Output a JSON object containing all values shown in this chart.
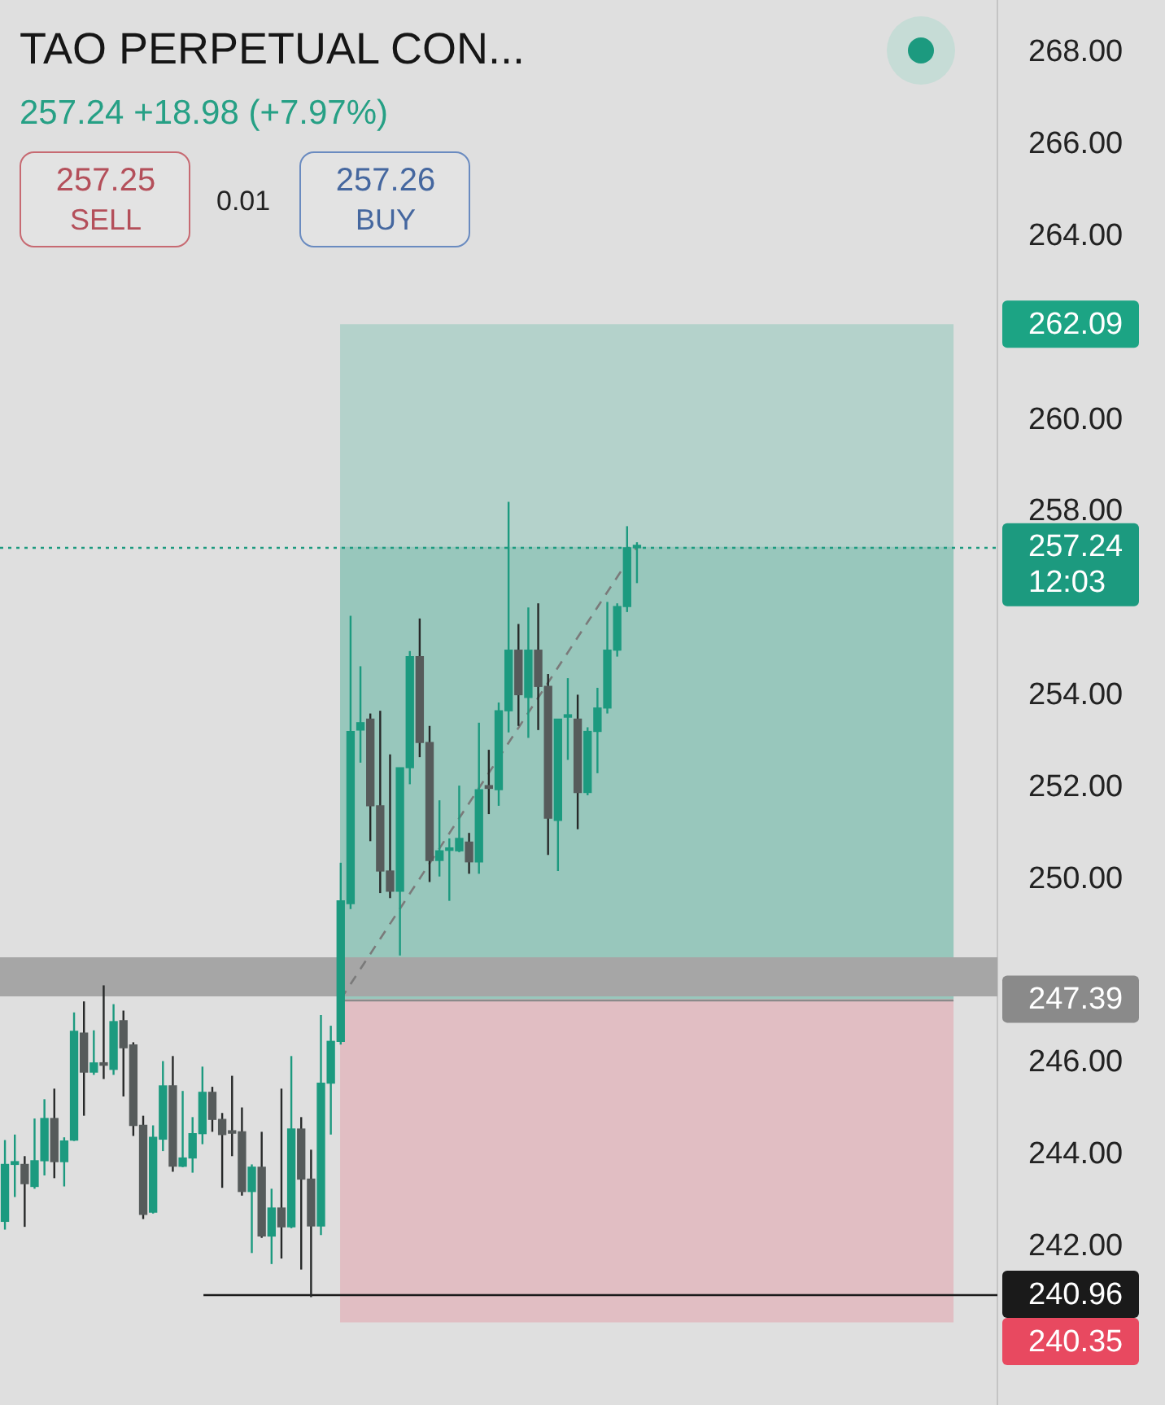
{
  "chart_data": {
    "type": "candlestick",
    "title": "TAO PERPETUAL CON...",
    "subtitle": "257.24 +18.98 (+7.97%)",
    "annotations": [
      "257.25",
      "SELL",
      "0.01",
      "257.26",
      "BUY"
    ],
    "categories": [
      null,
      null,
      null,
      null,
      null,
      null,
      null,
      null,
      null,
      null,
      null,
      null,
      null,
      null,
      null,
      null,
      null,
      null,
      null,
      null,
      null,
      null,
      null,
      null,
      null,
      null,
      null,
      null,
      null,
      null,
      null,
      null,
      null,
      null,
      null,
      null,
      null,
      null,
      null,
      null,
      null,
      null,
      null,
      null,
      null,
      null,
      null,
      null,
      null,
      null,
      null,
      null,
      null,
      null,
      null,
      null,
      null,
      null,
      null,
      null,
      null,
      null,
      null,
      null,
      null,
      null,
      null,
      null,
      null,
      null,
      null,
      null,
      null,
      null,
      null,
      null,
      null,
      null,
      null,
      null,
      null,
      null,
      null,
      null,
      null,
      null,
      null,
      null,
      null,
      null,
      null,
      null,
      null,
      null,
      null,
      null,
      null,
      null,
      null,
      null,
      null
    ],
    "ohlc": [
      [
        242.55,
        244.32,
        242.37,
        243.79
      ],
      [
        243.79,
        244.44,
        243.08,
        243.85
      ],
      [
        243.79,
        243.97,
        242.43,
        243.37
      ],
      [
        243.31,
        244.79,
        243.26,
        243.87
      ],
      [
        243.87,
        245.21,
        243.55,
        244.79
      ],
      [
        244.79,
        245.44,
        243.49,
        243.85
      ],
      [
        243.85,
        244.38,
        243.31,
        244.3
      ],
      [
        244.32,
        247.1,
        244.3,
        246.69
      ],
      [
        246.65,
        247.34,
        244.85,
        245.8
      ],
      [
        245.8,
        246.71,
        245.74,
        246.0
      ],
      [
        246.0,
        247.69,
        245.65,
        245.95
      ],
      [
        245.86,
        247.28,
        245.74,
        246.9
      ],
      [
        246.92,
        247.14,
        245.27,
        246.33
      ],
      [
        246.39,
        246.45,
        244.41,
        244.64
      ],
      [
        244.64,
        244.85,
        242.6,
        242.7
      ],
      [
        242.75,
        244.64,
        242.72,
        244.38
      ],
      [
        244.34,
        246.04,
        244.08,
        245.5
      ],
      [
        245.5,
        246.15,
        243.63,
        243.75
      ],
      [
        243.75,
        245.39,
        243.73,
        243.93
      ],
      [
        243.93,
        244.82,
        243.61,
        244.46
      ],
      [
        244.46,
        245.92,
        244.23,
        245.36
      ],
      [
        245.36,
        245.48,
        244.5,
        244.77
      ],
      [
        244.77,
        244.91,
        243.28,
        244.44
      ],
      [
        244.52,
        245.72,
        243.97,
        244.47
      ],
      [
        244.5,
        245.03,
        243.11,
        243.2
      ],
      [
        243.2,
        243.79,
        241.86,
        243.73
      ],
      [
        243.73,
        244.5,
        242.19,
        242.23
      ],
      [
        242.23,
        243.26,
        241.62,
        242.84
      ],
      [
        242.84,
        245.44,
        241.74,
        242.43
      ],
      [
        242.43,
        246.15,
        242.4,
        244.56
      ],
      [
        244.56,
        244.82,
        241.5,
        243.47
      ],
      [
        243.47,
        244.11,
        240.9,
        242.45
      ],
      [
        242.45,
        247.04,
        242.25,
        245.56
      ],
      [
        245.56,
        246.81,
        244.44,
        246.47
      ],
      [
        246.47,
        250.36,
        246.4,
        249.53
      ],
      [
        249.47,
        255.74,
        249.35,
        253.22
      ],
      [
        253.25,
        254.64,
        252.54,
        253.41
      ],
      [
        253.49,
        253.61,
        250.83,
        251.6
      ],
      [
        251.6,
        253.67,
        249.7,
        250.18
      ],
      [
        250.18,
        252.72,
        249.59,
        249.74
      ],
      [
        249.74,
        252.43,
        248.34,
        252.43
      ],
      [
        252.43,
        254.97,
        252.07,
        254.85
      ],
      [
        254.85,
        255.68,
        252.66,
        252.98
      ],
      [
        252.98,
        253.34,
        249.94,
        250.41
      ],
      [
        250.41,
        251.72,
        250.06,
        250.62
      ],
      [
        250.63,
        250.89,
        249.53,
        250.67
      ],
      [
        250.62,
        252.04,
        250.59,
        250.89
      ],
      [
        250.81,
        251.01,
        250.12,
        250.38
      ],
      [
        250.38,
        253.41,
        250.12,
        251.95
      ],
      [
        252.04,
        252.82,
        251.42,
        251.98
      ],
      [
        251.95,
        253.85,
        251.6,
        253.67
      ],
      [
        253.67,
        258.22,
        253.2,
        254.99
      ],
      [
        254.99,
        255.56,
        253.34,
        254.02
      ],
      [
        253.96,
        255.92,
        253.08,
        254.99
      ],
      [
        254.99,
        256.01,
        253.25,
        254.2
      ],
      [
        254.2,
        254.47,
        250.53,
        251.33
      ],
      [
        251.28,
        253.49,
        250.18,
        253.49
      ],
      [
        253.53,
        254.38,
        252.6,
        253.57
      ],
      [
        253.49,
        254.02,
        251.09,
        251.89
      ],
      [
        251.89,
        253.31,
        251.83,
        253.22
      ],
      [
        253.22,
        254.17,
        252.31,
        253.73
      ],
      [
        253.73,
        256.04,
        253.61,
        254.99
      ],
      [
        254.99,
        256.01,
        254.85,
        255.94
      ],
      [
        255.94,
        257.69,
        255.82,
        257.22
      ],
      [
        257.22,
        257.34,
        256.45,
        257.24
      ],
      null,
      null,
      null,
      null,
      null,
      null,
      null,
      null,
      null,
      null,
      null,
      null,
      null,
      null,
      null,
      null,
      null,
      null,
      null,
      null,
      null,
      null,
      null,
      null,
      null,
      null,
      null,
      null,
      null,
      null,
      null,
      null,
      null,
      null,
      null,
      null
    ],
    "colors": [
      "#1c9a7f",
      "#1c9a7f",
      "#565b5b",
      "#1c9a7f",
      "#1c9a7f",
      "#565b5b",
      "#1c9a7f",
      "#1c9a7f",
      "#565b5b",
      "#1c9a7f",
      "#565b5b",
      "#1c9a7f",
      "#565b5b",
      "#565b5b",
      "#565b5b",
      "#1c9a7f",
      "#1c9a7f",
      "#565b5b",
      "#1c9a7f",
      "#1c9a7f",
      "#1c9a7f",
      "#565b5b",
      "#565b5b",
      "#565b5b",
      "#565b5b",
      "#1c9a7f",
      "#565b5b",
      "#1c9a7f",
      "#565b5b",
      "#1c9a7f",
      "#565b5b",
      "#565b5b",
      "#1c9a7f",
      "#1c9a7f",
      "#1c9a7f",
      "#1c9a7f",
      "#1c9a7f",
      "#565b5b",
      "#565b5b",
      "#565b5b",
      "#1c9a7f",
      "#1c9a7f",
      "#565b5b",
      "#565b5b",
      "#1c9a7f",
      "#1c9a7f",
      "#1c9a7f",
      "#565b5b",
      "#1c9a7f",
      "#565b5b",
      "#1c9a7f",
      "#1c9a7f",
      "#565b5b",
      "#1c9a7f",
      "#565b5b",
      "#565b5b",
      "#1c9a7f",
      "#1c9a7f",
      "#565b5b",
      "#1c9a7f",
      "#1c9a7f",
      "#1c9a7f",
      "#1c9a7f",
      "#1c9a7f",
      "#1c9a7f",
      null,
      null,
      null,
      null,
      null,
      null,
      null,
      null,
      null,
      null,
      null,
      null,
      null,
      null,
      null,
      null,
      null,
      null,
      null,
      null,
      null,
      null,
      null,
      null,
      null,
      null,
      null,
      null,
      null,
      null,
      null,
      null,
      null,
      null,
      null,
      null
    ],
    "series": [
      {
        "type": "line",
        "color": "#7a7a7a",
        "line_style": "dashed",
        "values": [
          null,
          null,
          null,
          null,
          null,
          null,
          null,
          null,
          null,
          null,
          null,
          null,
          null,
          null,
          null,
          null,
          null,
          null,
          null,
          null,
          null,
          null,
          null,
          null,
          null,
          null,
          null,
          null,
          null,
          null,
          null,
          null,
          null,
          null,
          247.39,
          null,
          null,
          null,
          null,
          null,
          null,
          null,
          null,
          null,
          null,
          null,
          null,
          null,
          null,
          null,
          null,
          null,
          null,
          null,
          null,
          null,
          null,
          null,
          null,
          null,
          null,
          null,
          null,
          null,
          257.24,
          null,
          null,
          null,
          null,
          null,
          null,
          null,
          null,
          null,
          null,
          null,
          null,
          null,
          null,
          null,
          null,
          null,
          null,
          null,
          null,
          null,
          null,
          null,
          null,
          null,
          null,
          null,
          null,
          null,
          null,
          null,
          null,
          null,
          null,
          null,
          null
        ]
      }
    ],
    "ylim": [
      238.55,
      269.15
    ],
    "yticks": [
      {
        "value": 242,
        "label": "242.00"
      },
      {
        "value": 244,
        "label": "244.00"
      },
      {
        "value": 246,
        "label": "246.00"
      },
      {
        "value": 250,
        "label": "250.00"
      },
      {
        "value": 252,
        "label": "252.00"
      },
      {
        "value": 254,
        "label": "254.00"
      },
      {
        "value": 258,
        "label": "258.00"
      },
      {
        "value": 260,
        "label": "260.00"
      },
      {
        "value": 264,
        "label": "264.00"
      },
      {
        "value": 266,
        "label": "266.00"
      },
      {
        "value": 268,
        "label": "268.00"
      }
    ],
    "tick_labels": "y",
    "bands": [
      {
        "axis": "y",
        "from": 247.39,
        "to": 262.09,
        "label": "262.09",
        "color": "#b4d2cb"
      },
      {
        "axis": "y",
        "from": 247.39,
        "to": 257.24,
        "color": "#98c7bc"
      },
      {
        "axis": "y",
        "from": 247.39,
        "to": 240.35,
        "label": "240.35",
        "color": "#e1bec3"
      },
      {
        "axis": "y",
        "from": 247.45,
        "to": 248.3,
        "color": "#a6a6a6"
      }
    ],
    "ref_lines": [
      {
        "axis": "y",
        "value": 257.24,
        "label": "257.24\n12:03",
        "color": "#1c9a7f",
        "line_style": "dotted"
      },
      {
        "axis": "y",
        "value": 247.39,
        "label": "247.39",
        "color": "#8a8a8a",
        "line_style": "solid"
      },
      {
        "axis": "y",
        "value": 240.96,
        "label": "240.96",
        "color": "#1a1a1a",
        "line_style": "solid"
      }
    ]
  }
}
